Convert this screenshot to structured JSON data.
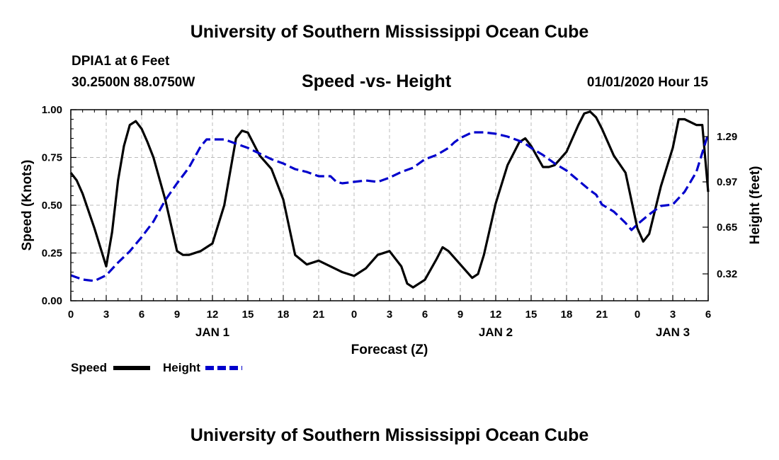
{
  "header": {
    "title": "University of Southern Mississippi Ocean Cube",
    "station": "DPIA1 at 6 Feet",
    "coords": "30.2500N 88.0750W",
    "chart_title": "Speed -vs- Height",
    "datetime": "01/01/2020 Hour 15"
  },
  "footer": {
    "title": "University of Southern Mississippi Ocean Cube"
  },
  "colors": {
    "speed": "#000000",
    "height": "#0000cc",
    "grid": "#bbbbbb"
  },
  "chart_data": {
    "type": "line",
    "title": "Speed -vs- Height",
    "xlabel": "Forecast (Z)",
    "ylabel": "Speed (Knots)",
    "ylabel_right": "Height (feet)",
    "xlim": [
      0,
      54
    ],
    "ylim": [
      0,
      1
    ],
    "ylim_right": [
      0.13,
      1.48
    ],
    "grid": true,
    "legend_position": "bottom-left",
    "x_ticks": [
      {
        "x": 0,
        "label": "0"
      },
      {
        "x": 3,
        "label": "3"
      },
      {
        "x": 6,
        "label": "6"
      },
      {
        "x": 9,
        "label": "9"
      },
      {
        "x": 12,
        "label": "12"
      },
      {
        "x": 15,
        "label": "15"
      },
      {
        "x": 18,
        "label": "18"
      },
      {
        "x": 21,
        "label": "21"
      },
      {
        "x": 24,
        "label": "0"
      },
      {
        "x": 27,
        "label": "3"
      },
      {
        "x": 30,
        "label": "6"
      },
      {
        "x": 33,
        "label": "9"
      },
      {
        "x": 36,
        "label": "12"
      },
      {
        "x": 39,
        "label": "15"
      },
      {
        "x": 42,
        "label": "18"
      },
      {
        "x": 45,
        "label": "21"
      },
      {
        "x": 48,
        "label": "0"
      },
      {
        "x": 51,
        "label": "3"
      },
      {
        "x": 54,
        "label": "6"
      }
    ],
    "day_labels": [
      {
        "x": 12,
        "label": "JAN 1"
      },
      {
        "x": 36,
        "label": "JAN 2"
      },
      {
        "x": 51,
        "label": "JAN 3"
      }
    ],
    "y_ticks_left": [
      {
        "v": 0,
        "label": "0.00"
      },
      {
        "v": 0.25,
        "label": "0.25"
      },
      {
        "v": 0.5,
        "label": "0.50"
      },
      {
        "v": 0.75,
        "label": "0.75"
      },
      {
        "v": 1.0,
        "label": "1.00"
      }
    ],
    "y_ticks_right": [
      {
        "v": 0.32,
        "label": "0.32"
      },
      {
        "v": 0.65,
        "label": "0.65"
      },
      {
        "v": 0.97,
        "label": "0.97"
      },
      {
        "v": 1.29,
        "label": "1.29"
      }
    ],
    "series": [
      {
        "name": "Speed",
        "axis": "left",
        "x": [
          0,
          0.5,
          1,
          2,
          3,
          3.5,
          4,
          4.5,
          5,
          5.5,
          6,
          6.5,
          7,
          8,
          9,
          9.5,
          10,
          11,
          11.5,
          12,
          13,
          14,
          14.5,
          15,
          16,
          17,
          18,
          19,
          20,
          21,
          22,
          23,
          24,
          25,
          26,
          27,
          28,
          28.5,
          29,
          30,
          31,
          31.5,
          32,
          33,
          34,
          34.5,
          35,
          36,
          37,
          38,
          38.5,
          39,
          40,
          40.5,
          41,
          42,
          43,
          43.5,
          44,
          44.5,
          45,
          46,
          47,
          48,
          48.5,
          49,
          50,
          51,
          51.5,
          52,
          53,
          53.5,
          54
        ],
        "values": [
          0.67,
          0.63,
          0.56,
          0.38,
          0.18,
          0.36,
          0.63,
          0.81,
          0.92,
          0.94,
          0.9,
          0.83,
          0.75,
          0.53,
          0.26,
          0.24,
          0.24,
          0.26,
          0.28,
          0.3,
          0.5,
          0.85,
          0.89,
          0.88,
          0.76,
          0.69,
          0.53,
          0.24,
          0.19,
          0.21,
          0.18,
          0.15,
          0.13,
          0.17,
          0.24,
          0.26,
          0.18,
          0.09,
          0.07,
          0.11,
          0.22,
          0.28,
          0.26,
          0.19,
          0.12,
          0.14,
          0.24,
          0.51,
          0.71,
          0.83,
          0.85,
          0.81,
          0.7,
          0.7,
          0.71,
          0.78,
          0.92,
          0.98,
          0.99,
          0.96,
          0.9,
          0.76,
          0.67,
          0.38,
          0.31,
          0.35,
          0.6,
          0.8,
          0.95,
          0.95,
          0.92,
          0.92,
          0.57
        ]
      },
      {
        "name": "Height",
        "axis": "right",
        "x": [
          0,
          1,
          2,
          3,
          4,
          5,
          6,
          7,
          8,
          9,
          10,
          11,
          11.5,
          12,
          13,
          14,
          15,
          16,
          17,
          18,
          19,
          20,
          21,
          22,
          22.5,
          23,
          24,
          25,
          26,
          27,
          28,
          29,
          30,
          31,
          32,
          32.5,
          33,
          34,
          35,
          36,
          37,
          38,
          38.5,
          39,
          40,
          41,
          42,
          43,
          44,
          44.5,
          45,
          46,
          47,
          47.5,
          48,
          49,
          50,
          51,
          52,
          53,
          54
        ],
        "values": [
          0.31,
          0.28,
          0.27,
          0.31,
          0.4,
          0.48,
          0.58,
          0.69,
          0.84,
          0.96,
          1.07,
          1.22,
          1.27,
          1.27,
          1.27,
          1.24,
          1.21,
          1.17,
          1.13,
          1.1,
          1.06,
          1.04,
          1.01,
          1.01,
          0.97,
          0.96,
          0.97,
          0.98,
          0.97,
          1.0,
          1.04,
          1.07,
          1.13,
          1.16,
          1.21,
          1.25,
          1.28,
          1.32,
          1.32,
          1.31,
          1.29,
          1.26,
          1.24,
          1.21,
          1.16,
          1.1,
          1.05,
          0.98,
          0.91,
          0.88,
          0.81,
          0.76,
          0.68,
          0.63,
          0.67,
          0.74,
          0.8,
          0.81,
          0.9,
          1.04,
          1.31
        ]
      }
    ]
  }
}
